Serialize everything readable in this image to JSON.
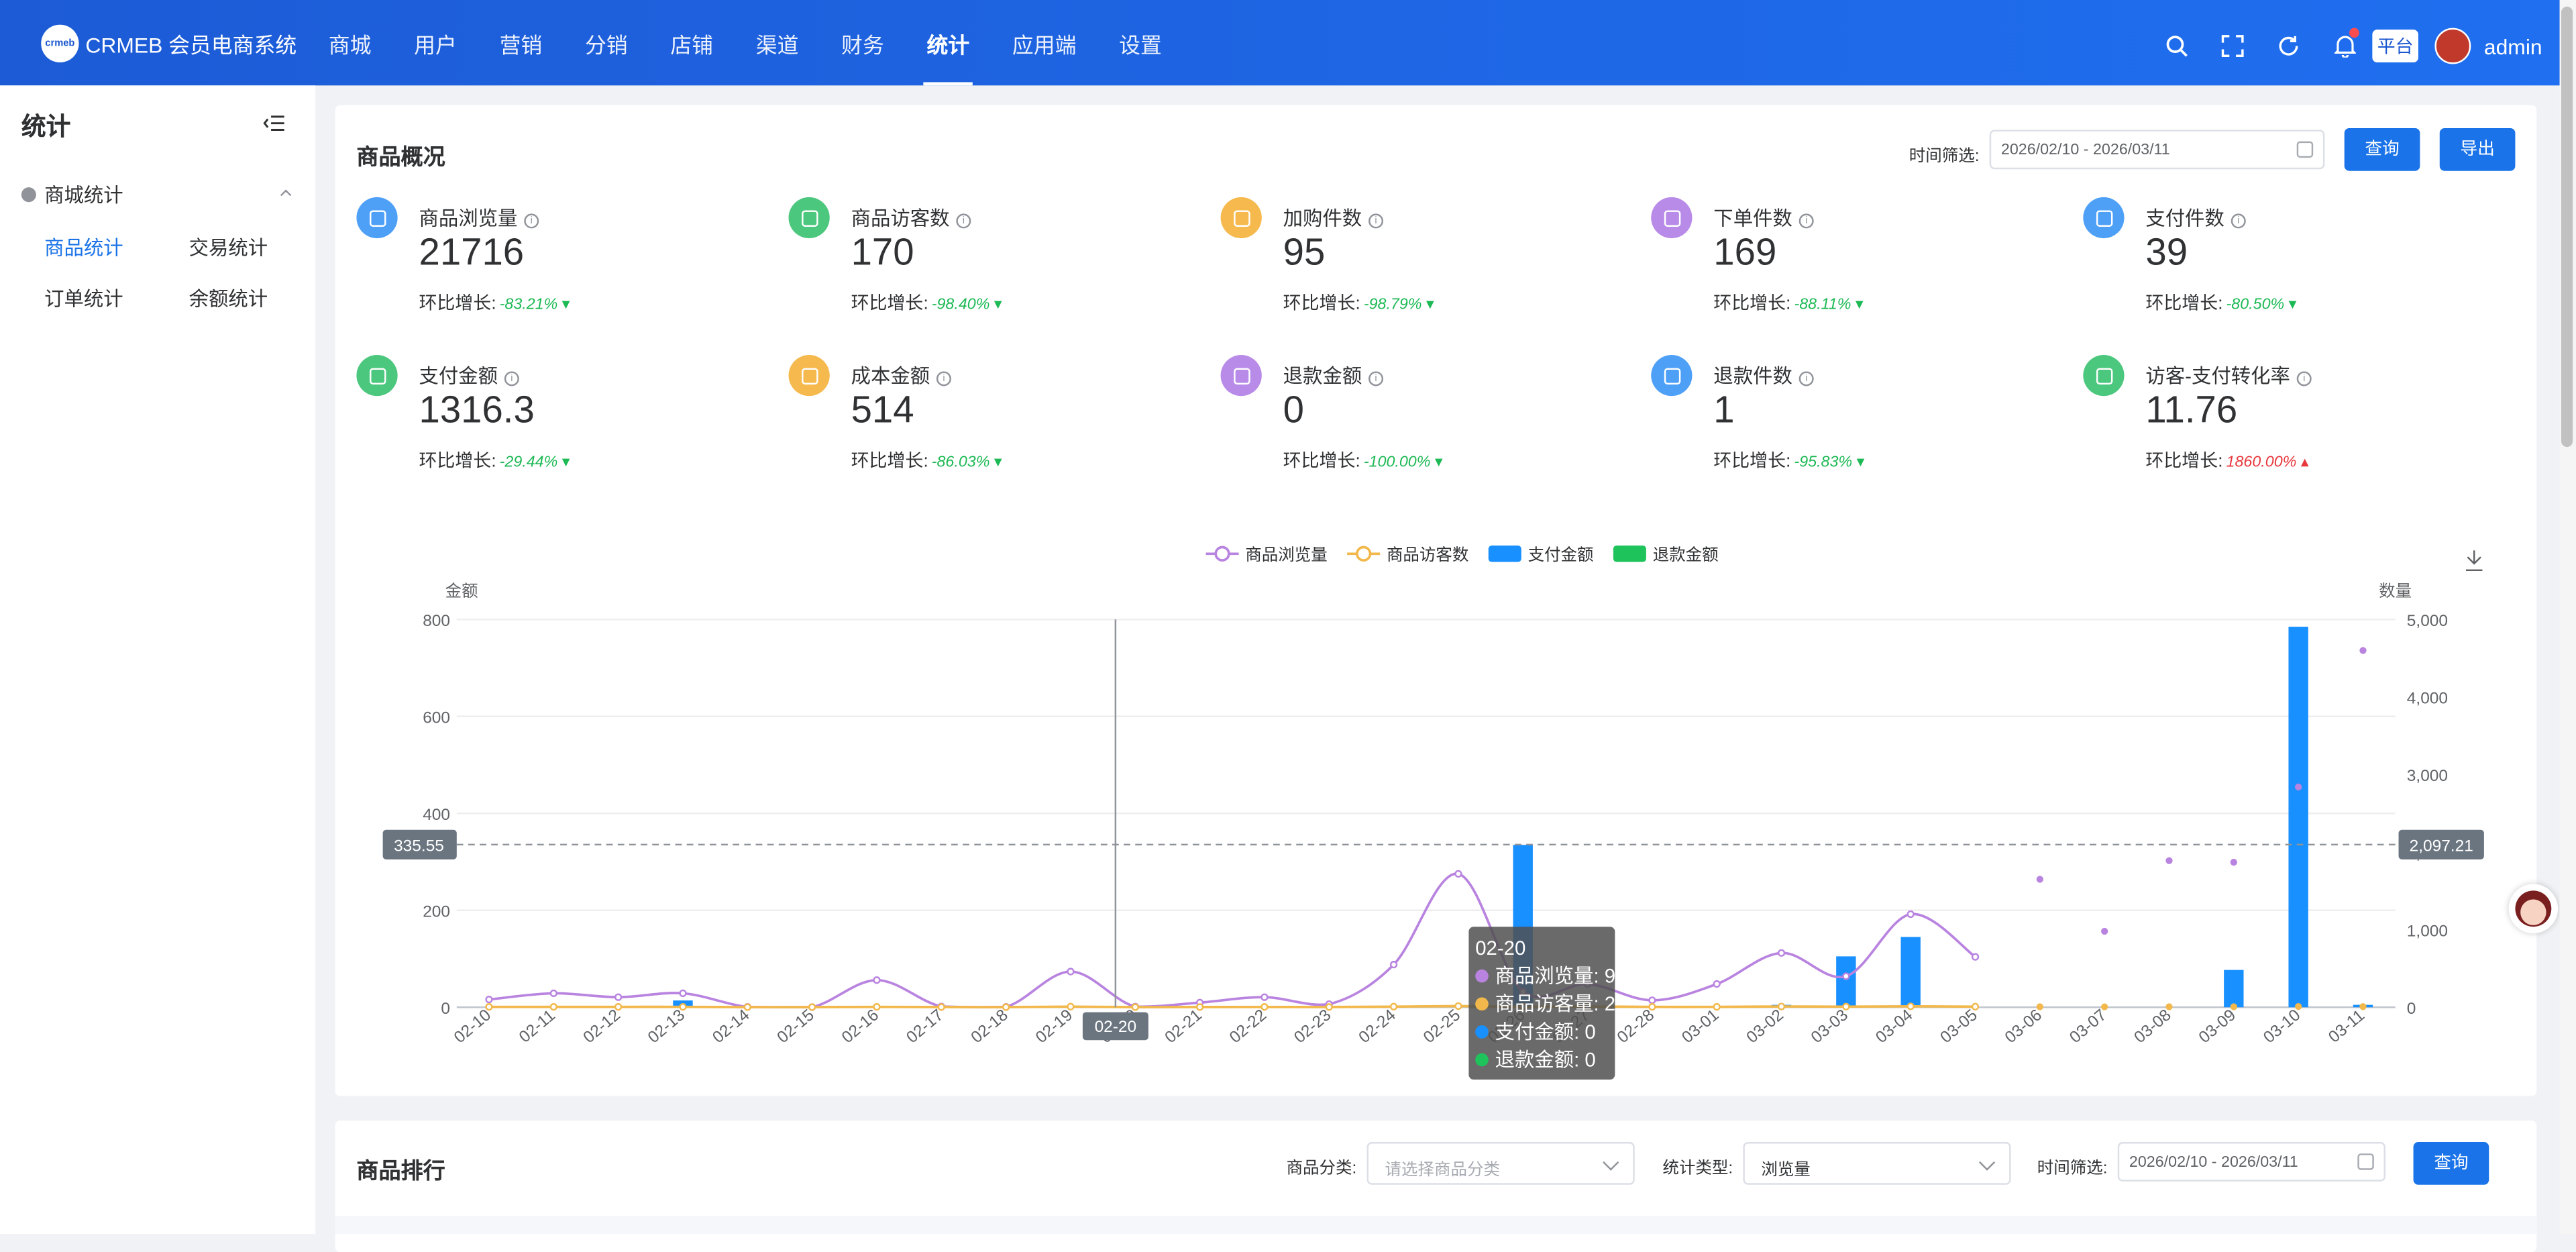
{
  "app": {
    "logo_text": "CRMEB 会员电商系统",
    "logo_badge": "crmeb"
  },
  "nav": [
    {
      "label": "商城",
      "active": false
    },
    {
      "label": "用户",
      "active": false
    },
    {
      "label": "营销",
      "active": false
    },
    {
      "label": "分销",
      "active": false
    },
    {
      "label": "店铺",
      "active": false
    },
    {
      "label": "渠道",
      "active": false
    },
    {
      "label": "财务",
      "active": false
    },
    {
      "label": "统计",
      "active": true
    },
    {
      "label": "应用端",
      "active": false
    },
    {
      "label": "设置",
      "active": false
    }
  ],
  "topbar": {
    "platform": "平台",
    "user": "admin"
  },
  "sidebar": {
    "title": "统计",
    "group": "商城统计",
    "links": [
      {
        "label": "商品统计",
        "active": true
      },
      {
        "label": "交易统计",
        "active": false
      },
      {
        "label": "订单统计",
        "active": false
      },
      {
        "label": "余额统计",
        "active": false
      }
    ]
  },
  "overview": {
    "title": "商品概况",
    "time_label": "时间筛选:",
    "date_range": "2026/02/10 - 2026/03/11",
    "query_btn": "查询",
    "export_btn": "导出",
    "growth_label": "环比增长:",
    "metrics": [
      {
        "label": "商品浏览量",
        "value": "21716",
        "growth": "-83.21%",
        "dir": "down",
        "color": "#4ea0f7"
      },
      {
        "label": "商品访客数",
        "value": "170",
        "growth": "-98.40%",
        "dir": "down",
        "color": "#4cc77e"
      },
      {
        "label": "加购件数",
        "value": "95",
        "growth": "-98.79%",
        "dir": "down",
        "color": "#f6b94d"
      },
      {
        "label": "下单件数",
        "value": "169",
        "growth": "-88.11%",
        "dir": "down",
        "color": "#b98be8"
      },
      {
        "label": "支付件数",
        "value": "39",
        "growth": "-80.50%",
        "dir": "down",
        "color": "#4ea0f7"
      },
      {
        "label": "支付金额",
        "value": "1316.3",
        "growth": "-29.44%",
        "dir": "down",
        "color": "#4cc77e"
      },
      {
        "label": "成本金额",
        "value": "514",
        "growth": "-86.03%",
        "dir": "down",
        "color": "#f6b94d"
      },
      {
        "label": "退款金额",
        "value": "0",
        "growth": "-100.00%",
        "dir": "down",
        "color": "#b98be8"
      },
      {
        "label": "退款件数",
        "value": "1",
        "growth": "-95.83%",
        "dir": "down",
        "color": "#4ea0f7"
      },
      {
        "label": "访客-支付转化率",
        "value": "11.76",
        "growth": "1860.00%",
        "dir": "up",
        "color": "#4cc77e"
      }
    ]
  },
  "chart_data": {
    "type": "bar",
    "legend": [
      {
        "name": "商品浏览量",
        "color": "#b983e0",
        "kind": "line"
      },
      {
        "name": "商品访客数",
        "color": "#f2b84b",
        "kind": "line"
      },
      {
        "name": "支付金额",
        "color": "#1890ff",
        "kind": "bar"
      },
      {
        "name": "退款金额",
        "color": "#1fc35b",
        "kind": "bar"
      }
    ],
    "ylabel_left": "金额",
    "ylabel_right": "数量",
    "ylim_left": [
      0,
      800
    ],
    "ylim_right": [
      0,
      5000
    ],
    "yticks_left": [
      "0",
      "200",
      "400",
      "600",
      "800"
    ],
    "yticks_right": [
      "0",
      "1,000",
      "2,000",
      "3,000",
      "4,000",
      "5,000"
    ],
    "categories": [
      "02-10",
      "02-11",
      "02-12",
      "02-13",
      "02-14",
      "02-15",
      "02-16",
      "02-17",
      "02-18",
      "02-19",
      "02-20",
      "02-21",
      "02-22",
      "02-23",
      "02-24",
      "02-25",
      "02-26",
      "02-27",
      "02-28",
      "03-01",
      "03-02",
      "03-03",
      "03-04",
      "03-05",
      "03-06",
      "03-07",
      "03-08",
      "03-09",
      "03-10",
      "03-11"
    ],
    "series": [
      {
        "name": "商品浏览量",
        "axis": "right",
        "values": [
          100,
          180,
          130,
          180,
          5,
          2,
          350,
          10,
          5,
          460,
          9,
          60,
          130,
          40,
          550,
          1720,
          200,
          300,
          90,
          300,
          700,
          400,
          1200,
          650,
          1650,
          980,
          1890,
          1870,
          2840,
          4600
        ]
      },
      {
        "name": "商品访客数",
        "axis": "right",
        "values": [
          5,
          5,
          5,
          5,
          2,
          2,
          5,
          3,
          2,
          8,
          2,
          3,
          4,
          3,
          8,
          15,
          8,
          10,
          5,
          5,
          10,
          8,
          12,
          8,
          6,
          5,
          6,
          6,
          10,
          8
        ]
      },
      {
        "name": "支付金额",
        "axis": "left",
        "values": [
          0,
          0,
          0,
          14,
          0,
          0,
          0,
          0,
          0,
          0,
          0,
          0,
          0,
          0,
          0,
          0,
          335,
          0,
          0,
          0,
          5,
          105,
          145,
          0,
          0,
          0,
          0,
          77,
          785,
          5
        ]
      },
      {
        "name": "退款金额",
        "axis": "left",
        "values": [
          0,
          0,
          0,
          0,
          0,
          0,
          0,
          0,
          0,
          0,
          0,
          0,
          0,
          0,
          0,
          0,
          0,
          0,
          0,
          0,
          0,
          0,
          0,
          0,
          0,
          0,
          0,
          0,
          0,
          0
        ]
      }
    ],
    "crosshair": {
      "left_value": "335.55",
      "right_value": "2,097.21",
      "x_label": "02-20"
    },
    "tooltip": {
      "title": "02-20",
      "items": [
        {
          "name": "商品浏览量",
          "value": "9",
          "color": "#b983e0"
        },
        {
          "name": "商品访客量",
          "value": "2",
          "color": "#f2b84b"
        },
        {
          "name": "支付金额",
          "value": "0",
          "color": "#1890ff"
        },
        {
          "name": "退款金额",
          "value": "0",
          "color": "#1fc35b"
        }
      ]
    }
  },
  "ranking": {
    "title": "商品排行",
    "category_label": "商品分类:",
    "category_placeholder": "请选择商品分类",
    "type_label": "统计类型:",
    "type_value": "浏览量",
    "time_label": "时间筛选:",
    "date_range": "2026/02/10 - 2026/03/11",
    "query_btn": "查询"
  }
}
